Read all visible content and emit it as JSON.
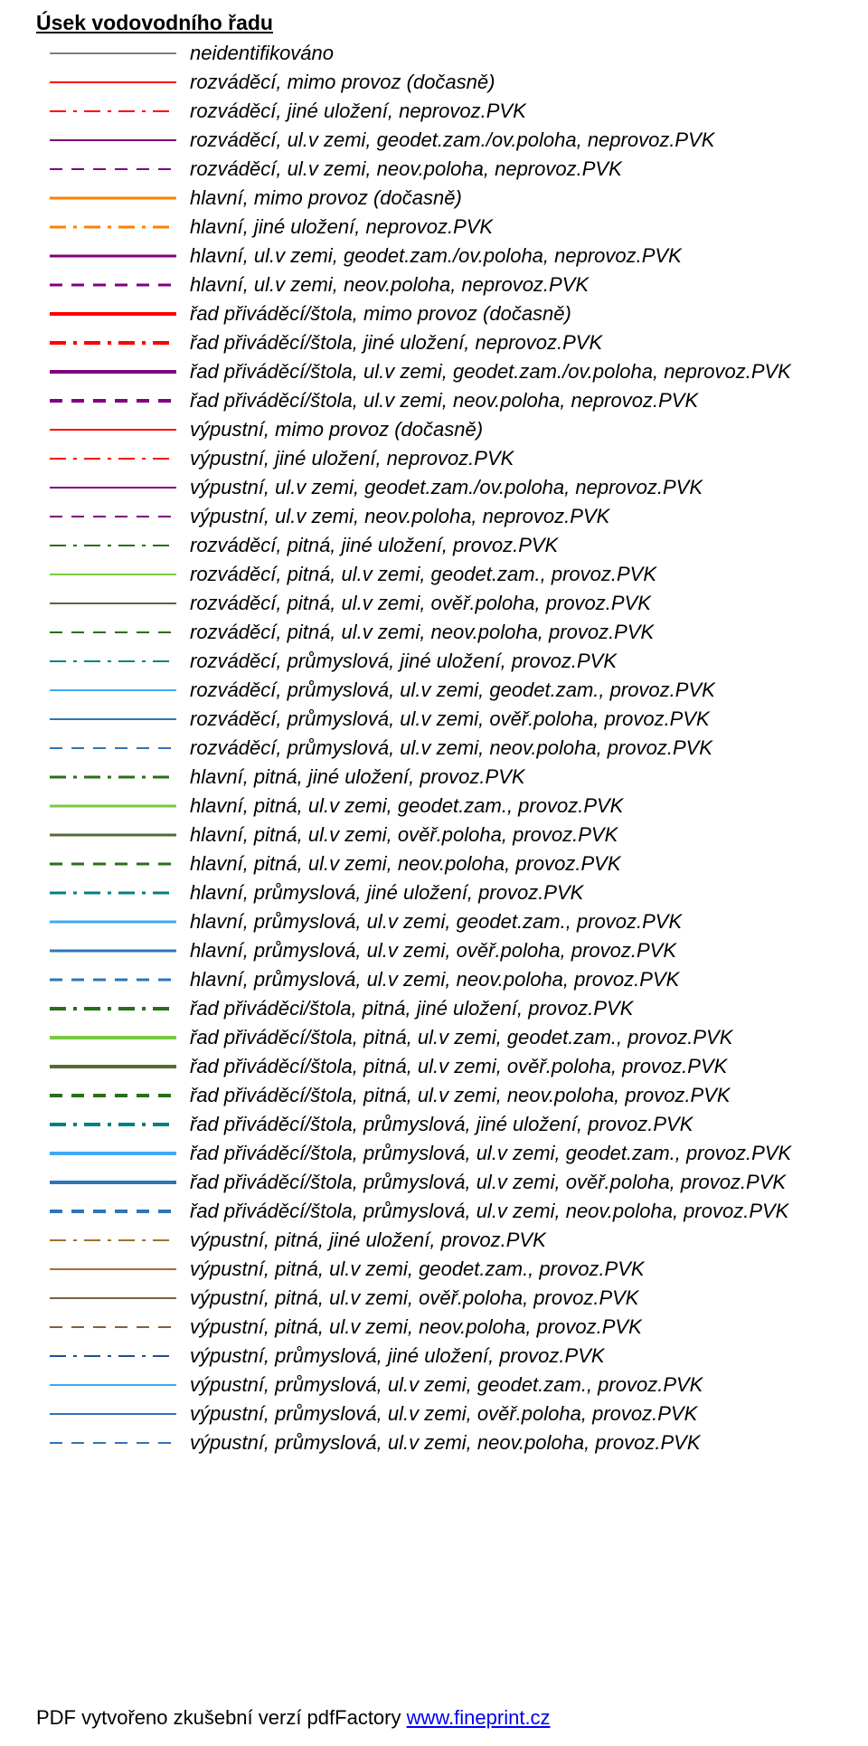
{
  "title": "Úsek vodovodního řadu",
  "footer_prefix": "PDF vytvořeno zkušební verzí pdfFactory ",
  "footer_link": "www.fineprint.cz",
  "line_width_thin": 2,
  "line_width_med": 3,
  "line_width_thick": 4,
  "colors": {
    "gray": "#808080",
    "red": "#ff0000",
    "purple": "#800080",
    "orange": "#ff8000",
    "darkgreen": "#2a6e1a",
    "lightgreen": "#7ac943",
    "olive": "#556b2f",
    "teal": "#008080",
    "skyblue": "#3fa9f5",
    "steelblue": "#2e75b6",
    "brown": "#a07030",
    "darkbrown": "#806040",
    "darkblue": "#205090"
  },
  "items": [
    {
      "color": "gray",
      "style": "solid",
      "width": "thin",
      "label": "neidentifikováno"
    },
    {
      "color": "red",
      "style": "solid",
      "width": "thin",
      "label": "rozváděcí, mimo provoz (dočasně)"
    },
    {
      "color": "red",
      "style": "dashdot",
      "width": "thin",
      "label": "rozváděcí, jiné uložení, neprovoz.PVK"
    },
    {
      "color": "purple",
      "style": "solid",
      "width": "thin",
      "label": "rozváděcí, ul.v zemi, geodet.zam./ov.poloha, neprovoz.PVK"
    },
    {
      "color": "purple",
      "style": "dash",
      "width": "thin",
      "label": "rozváděcí, ul.v zemi, neov.poloha, neprovoz.PVK"
    },
    {
      "color": "orange",
      "style": "solid",
      "width": "med",
      "label": "hlavní, mimo provoz (dočasně)"
    },
    {
      "color": "orange",
      "style": "dashdot",
      "width": "med",
      "label": "hlavní, jiné uložení, neprovoz.PVK"
    },
    {
      "color": "purple",
      "style": "solid",
      "width": "med",
      "label": "hlavní, ul.v zemi, geodet.zam./ov.poloha, neprovoz.PVK"
    },
    {
      "color": "purple",
      "style": "dash",
      "width": "med",
      "label": "hlavní, ul.v zemi, neov.poloha, neprovoz.PVK"
    },
    {
      "color": "red",
      "style": "solid",
      "width": "thick",
      "label": "řad přiváděcí/štola, mimo provoz (dočasně)"
    },
    {
      "color": "red",
      "style": "dashdot",
      "width": "thick",
      "label": "řad přiváděcí/štola, jiné uložení, neprovoz.PVK"
    },
    {
      "color": "purple",
      "style": "solid",
      "width": "thick",
      "label": "řad přiváděcí/štola, ul.v zemi, geodet.zam./ov.poloha, neprovoz.PVK"
    },
    {
      "color": "purple",
      "style": "dash",
      "width": "thick",
      "label": "řad přiváděcí/štola, ul.v zemi, neov.poloha, neprovoz.PVK"
    },
    {
      "color": "red",
      "style": "solid",
      "width": "thin",
      "label": "výpustní, mimo provoz (dočasně)"
    },
    {
      "color": "red",
      "style": "dashdot",
      "width": "thin",
      "label": "výpustní, jiné uložení, neprovoz.PVK"
    },
    {
      "color": "purple",
      "style": "solid",
      "width": "thin",
      "label": "výpustní, ul.v zemi, geodet.zam./ov.poloha, neprovoz.PVK"
    },
    {
      "color": "purple",
      "style": "dash",
      "width": "thin",
      "label": "výpustní, ul.v zemi, neov.poloha, neprovoz.PVK"
    },
    {
      "color": "darkgreen",
      "style": "dashdot",
      "width": "thin",
      "label": "rozváděcí, pitná, jiné uložení, provoz.PVK"
    },
    {
      "color": "lightgreen",
      "style": "solid",
      "width": "thin",
      "label": "rozváděcí, pitná, ul.v zemi, geodet.zam., provoz.PVK"
    },
    {
      "color": "olive",
      "style": "solid",
      "width": "thin",
      "label": "rozváděcí, pitná, ul.v zemi, ověř.poloha, provoz.PVK"
    },
    {
      "color": "darkgreen",
      "style": "dash",
      "width": "thin",
      "label": "rozváděcí, pitná, ul.v zemi, neov.poloha, provoz.PVK"
    },
    {
      "color": "teal",
      "style": "dashdot",
      "width": "thin",
      "label": "rozváděcí, průmyslová, jiné uložení, provoz.PVK"
    },
    {
      "color": "skyblue",
      "style": "solid",
      "width": "thin",
      "label": "rozváděcí, průmyslová, ul.v zemi, geodet.zam., provoz.PVK"
    },
    {
      "color": "steelblue",
      "style": "solid",
      "width": "thin",
      "label": "rozváděcí, průmyslová, ul.v zemi, ověř.poloha, provoz.PVK"
    },
    {
      "color": "steelblue",
      "style": "dash",
      "width": "thin",
      "label": "rozváděcí, průmyslová, ul.v zemi, neov.poloha, provoz.PVK"
    },
    {
      "color": "darkgreen",
      "style": "dashdot",
      "width": "med",
      "label": "hlavní, pitná, jiné uložení, provoz.PVK"
    },
    {
      "color": "lightgreen",
      "style": "solid",
      "width": "med",
      "label": "hlavní, pitná, ul.v zemi, geodet.zam., provoz.PVK"
    },
    {
      "color": "olive",
      "style": "solid",
      "width": "med",
      "label": "hlavní, pitná, ul.v zemi, ověř.poloha, provoz.PVK"
    },
    {
      "color": "darkgreen",
      "style": "dash",
      "width": "med",
      "label": "hlavní, pitná, ul.v zemi, neov.poloha, provoz.PVK"
    },
    {
      "color": "teal",
      "style": "dashdot",
      "width": "med",
      "label": "hlavní, průmyslová, jiné uložení, provoz.PVK"
    },
    {
      "color": "skyblue",
      "style": "solid",
      "width": "med",
      "label": "hlavní, průmyslová, ul.v zemi, geodet.zam., provoz.PVK"
    },
    {
      "color": "steelblue",
      "style": "solid",
      "width": "med",
      "label": "hlavní, průmyslová, ul.v zemi, ověř.poloha, provoz.PVK"
    },
    {
      "color": "steelblue",
      "style": "dash",
      "width": "med",
      "label": "hlavní, průmyslová, ul.v zemi, neov.poloha, provoz.PVK"
    },
    {
      "color": "darkgreen",
      "style": "dashdot",
      "width": "thick",
      "label": "řad přiváděci/štola, pitná, jiné uložení, provoz.PVK"
    },
    {
      "color": "lightgreen",
      "style": "solid",
      "width": "thick",
      "label": "řad přiváděcí/štola, pitná, ul.v zemi, geodet.zam., provoz.PVK"
    },
    {
      "color": "olive",
      "style": "solid",
      "width": "thick",
      "label": "řad přiváděcí/štola, pitná, ul.v zemi, ověř.poloha, provoz.PVK"
    },
    {
      "color": "darkgreen",
      "style": "dash",
      "width": "thick",
      "label": "řad přiváděcí/štola, pitná, ul.v zemi, neov.poloha, provoz.PVK"
    },
    {
      "color": "teal",
      "style": "dashdot",
      "width": "thick",
      "label": "řad přiváděcí/štola, průmyslová, jiné uložení, provoz.PVK"
    },
    {
      "color": "skyblue",
      "style": "solid",
      "width": "thick",
      "label": "řad přiváděcí/štola, průmyslová, ul.v zemi, geodet.zam., provoz.PVK"
    },
    {
      "color": "steelblue",
      "style": "solid",
      "width": "thick",
      "label": "řad přiváděcí/štola, průmyslová, ul.v zemi, ověř.poloha, provoz.PVK"
    },
    {
      "color": "steelblue",
      "style": "dash",
      "width": "thick",
      "label": "řad přiváděcí/štola, průmyslová, ul.v zemi, neov.poloha, provoz.PVK"
    },
    {
      "color": "brown",
      "style": "dashdot",
      "width": "thin",
      "label": "výpustní, pitná, jiné uložení, provoz.PVK"
    },
    {
      "color": "brown",
      "style": "solid",
      "width": "thin",
      "label": "výpustní, pitná, ul.v zemi, geodet.zam., provoz.PVK"
    },
    {
      "color": "darkbrown",
      "style": "solid",
      "width": "thin",
      "label": "výpustní, pitná, ul.v zemi, ověř.poloha, provoz.PVK"
    },
    {
      "color": "darkbrown",
      "style": "dash",
      "width": "thin",
      "label": "výpustní, pitná, ul.v zemi, neov.poloha, provoz.PVK"
    },
    {
      "color": "darkblue",
      "style": "dashdot",
      "width": "thin",
      "label": "výpustní, průmyslová, jiné uložení, provoz.PVK"
    },
    {
      "color": "skyblue",
      "style": "solid",
      "width": "thin",
      "label": "výpustní, průmyslová, ul.v zemi, geodet.zam., provoz.PVK"
    },
    {
      "color": "steelblue",
      "style": "solid",
      "width": "thin",
      "label": "výpustní, průmyslová, ul.v zemi, ověř.poloha, provoz.PVK"
    },
    {
      "color": "steelblue",
      "style": "dash",
      "width": "thin",
      "label": "výpustní, průmyslová, ul.v zemi, neov.poloha, provoz.PVK"
    }
  ]
}
